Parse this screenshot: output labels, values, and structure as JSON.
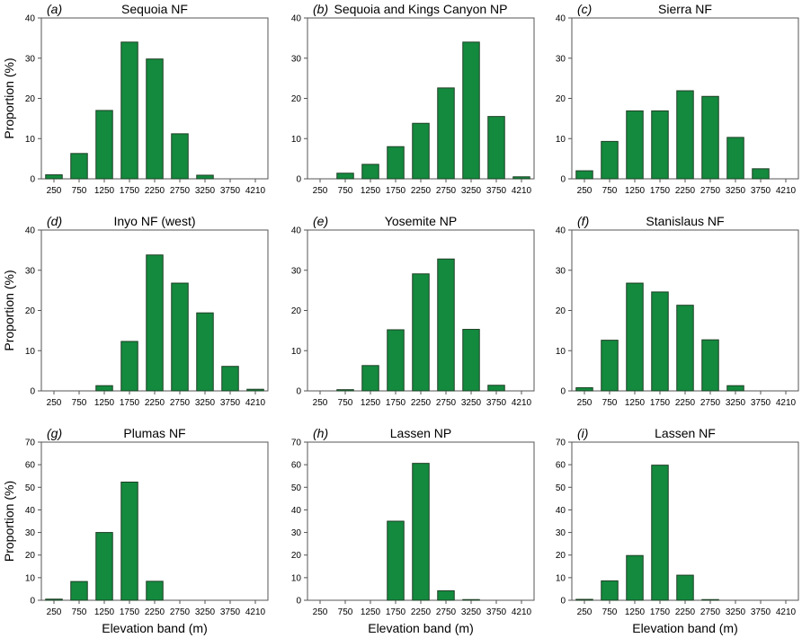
{
  "figure": {
    "ylabel": "Proportion (%)",
    "xlabel": "Elevation band (m)",
    "bar_color": "#138a3e",
    "bar_edge_color": "#1e3f25"
  },
  "chart_data": [
    {
      "type": "bar",
      "letter": "a",
      "title": "Sequoia NF",
      "categories": [
        "250",
        "750",
        "1250",
        "1750",
        "2250",
        "2750",
        "3250",
        "3750",
        "4210"
      ],
      "values": [
        1,
        6.3,
        17,
        34,
        29.8,
        11.2,
        0.9,
        0,
        0
      ],
      "ylim": [
        0,
        40
      ],
      "yticks": [
        0,
        10,
        20,
        30,
        40
      ]
    },
    {
      "type": "bar",
      "letter": "b",
      "title": "Sequoia and Kings Canyon NP",
      "categories": [
        "250",
        "750",
        "1250",
        "1750",
        "2250",
        "2750",
        "3250",
        "3750",
        "4210"
      ],
      "values": [
        0,
        1.4,
        3.6,
        8,
        13.8,
        22.6,
        34,
        15.5,
        0.5
      ],
      "ylim": [
        0,
        40
      ],
      "yticks": [
        0,
        10,
        20,
        30,
        40
      ]
    },
    {
      "type": "bar",
      "letter": "c",
      "title": "Sierra NF",
      "categories": [
        "250",
        "750",
        "1250",
        "1750",
        "2250",
        "2750",
        "3250",
        "3750",
        "4210"
      ],
      "values": [
        2,
        9.3,
        16.9,
        16.9,
        21.9,
        20.5,
        10.3,
        2.5,
        0
      ],
      "ylim": [
        0,
        40
      ],
      "yticks": [
        0,
        10,
        20,
        30,
        40
      ]
    },
    {
      "type": "bar",
      "letter": "d",
      "title": "Inyo NF (west)",
      "categories": [
        "250",
        "750",
        "1250",
        "1750",
        "2250",
        "2750",
        "3250",
        "3750",
        "4210"
      ],
      "values": [
        0,
        0,
        1.3,
        12.3,
        33.8,
        26.8,
        19.4,
        6.1,
        0.4
      ],
      "ylim": [
        0,
        40
      ],
      "yticks": [
        0,
        10,
        20,
        30,
        40
      ]
    },
    {
      "type": "bar",
      "letter": "e",
      "title": "Yosemite NP",
      "categories": [
        "250",
        "750",
        "1250",
        "1750",
        "2250",
        "2750",
        "3250",
        "3750",
        "4210"
      ],
      "values": [
        0,
        0.3,
        6.3,
        15.2,
        29.1,
        32.8,
        15.3,
        1.4,
        0
      ],
      "ylim": [
        0,
        40
      ],
      "yticks": [
        0,
        10,
        20,
        30,
        40
      ]
    },
    {
      "type": "bar",
      "letter": "f",
      "title": "Stanislaus NF",
      "categories": [
        "250",
        "750",
        "1250",
        "1750",
        "2250",
        "2750",
        "3250",
        "3750",
        "4210"
      ],
      "values": [
        0.8,
        12.6,
        26.8,
        24.6,
        21.3,
        12.7,
        1.3,
        0,
        0
      ],
      "ylim": [
        0,
        40
      ],
      "yticks": [
        0,
        10,
        20,
        30,
        40
      ]
    },
    {
      "type": "bar",
      "letter": "g",
      "title": "Plumas NF",
      "categories": [
        "250",
        "750",
        "1250",
        "1750",
        "2250",
        "2750",
        "3250",
        "3750",
        "4210"
      ],
      "values": [
        0.5,
        8.3,
        30,
        52.3,
        8.4,
        0,
        0,
        0,
        0
      ],
      "ylim": [
        0,
        70
      ],
      "yticks": [
        0,
        10,
        20,
        30,
        40,
        50,
        60,
        70
      ]
    },
    {
      "type": "bar",
      "letter": "h",
      "title": "Lassen NP",
      "categories": [
        "250",
        "750",
        "1250",
        "1750",
        "2250",
        "2750",
        "3250",
        "3750",
        "4210"
      ],
      "values": [
        0,
        0,
        0,
        35,
        60.6,
        4.2,
        0.3,
        0,
        0
      ],
      "ylim": [
        0,
        70
      ],
      "yticks": [
        0,
        10,
        20,
        30,
        40,
        50,
        60,
        70
      ]
    },
    {
      "type": "bar",
      "letter": "i",
      "title": "Lassen NF",
      "categories": [
        "250",
        "750",
        "1250",
        "1750",
        "2250",
        "2750",
        "3250",
        "3750",
        "4210"
      ],
      "values": [
        0.4,
        8.6,
        19.8,
        59.8,
        11.1,
        0.3,
        0,
        0,
        0
      ],
      "ylim": [
        0,
        70
      ],
      "yticks": [
        0,
        10,
        20,
        30,
        40,
        50,
        60,
        70
      ]
    }
  ]
}
